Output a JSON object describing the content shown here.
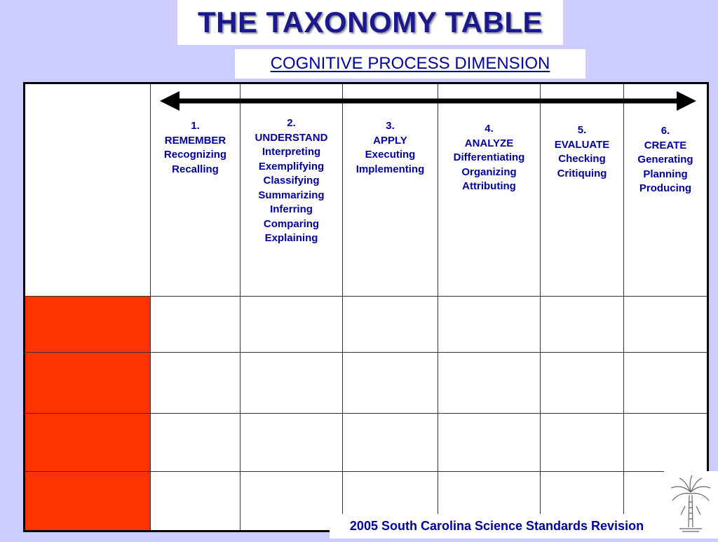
{
  "title": "THE TAXONOMY TABLE",
  "subtitle": "COGNITIVE PROCESS DIMENSION",
  "columns": [
    {
      "number": "1.",
      "name": "REMEMBER",
      "processes": [
        "Recognizing",
        "Recalling"
      ]
    },
    {
      "number": "2.",
      "name": "UNDERSTAND",
      "processes": [
        "Interpreting",
        "Exemplifying",
        "Classifying",
        "Summarizing",
        "Inferring",
        "Comparing",
        "Explaining"
      ]
    },
    {
      "number": "3.",
      "name": "APPLY",
      "processes": [
        "Executing",
        "Implementing"
      ]
    },
    {
      "number": "4.",
      "name": "ANALYZE",
      "processes": [
        "Differentiating",
        "Organizing",
        "Attributing"
      ]
    },
    {
      "number": "5.",
      "name": "EVALUATE",
      "processes": [
        "Checking",
        "Critiquing"
      ]
    },
    {
      "number": "6.",
      "name": "CREATE",
      "processes": [
        "Generating",
        "Planning",
        "Producing"
      ]
    }
  ],
  "footer": "2005 South Carolina Science Standards Revision",
  "logo_icon": "palmetto-tree-icon",
  "colors": {
    "background": "#ccccff",
    "title_text": "#1a1a8c",
    "text_blue": "#000099",
    "row_header_red": "#ff3300"
  }
}
